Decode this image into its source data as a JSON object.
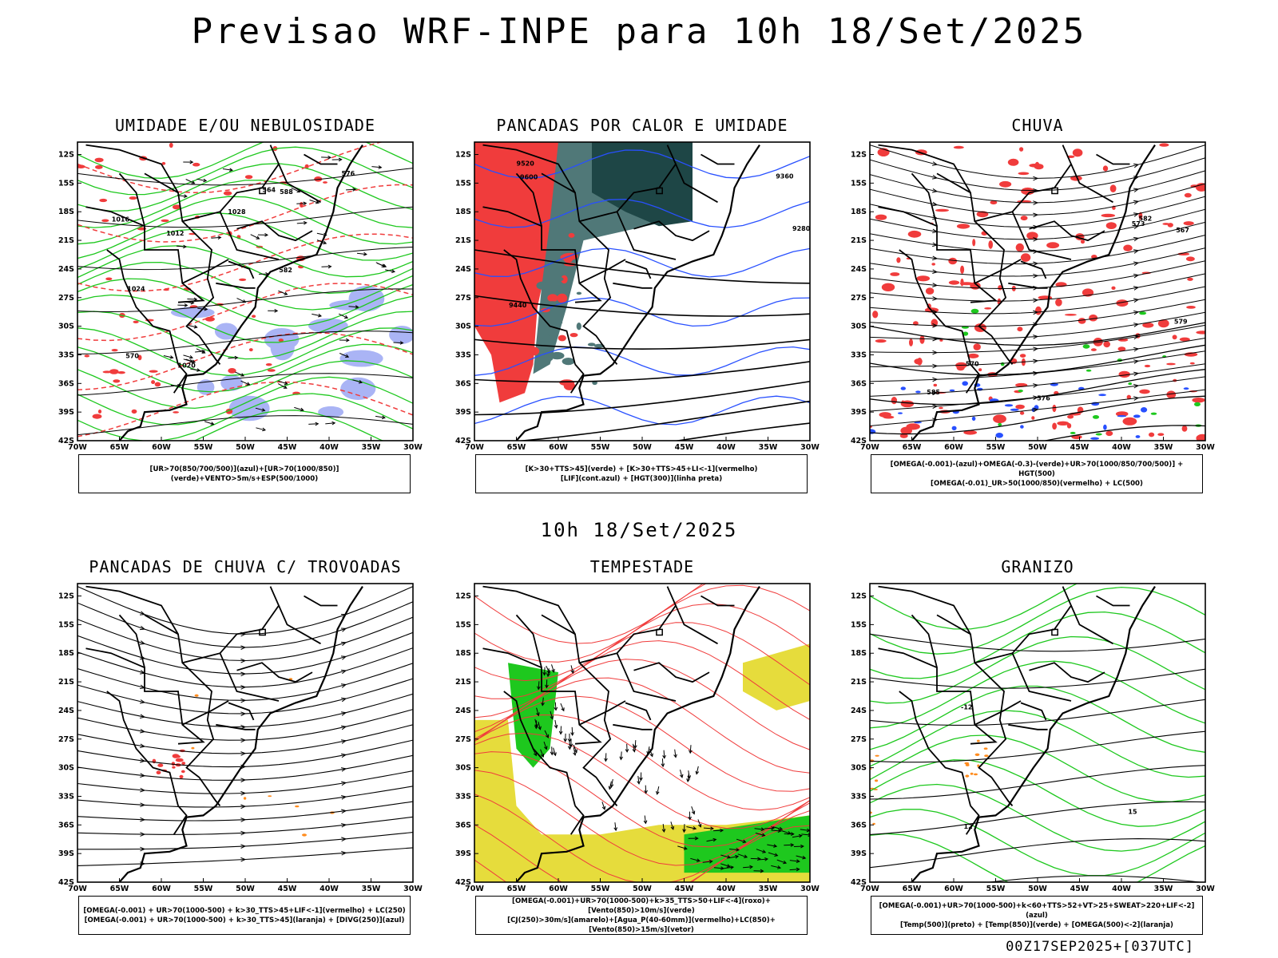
{
  "title": "Previsao WRF-INPE  para 10h 18/Set/2025",
  "subtitle": "10h 18/Set/2025",
  "footer": "00Z17SEP2025+[037UTC]",
  "colors": {
    "red": "#f03c3c",
    "green": "#1ec81e",
    "blue": "#2850ff",
    "lavender": "#aab4f5",
    "darkteal": "#1e4646",
    "teal": "#507878",
    "yellow": "#e6dc3c",
    "orange": "#ff8c1e"
  },
  "axes": {
    "lat_labels": [
      "12S",
      "15S",
      "18S",
      "21S",
      "24S",
      "27S",
      "30S",
      "33S",
      "36S",
      "39S",
      "42S"
    ],
    "lon_labels": [
      "70W",
      "65W",
      "60W",
      "55W",
      "50W",
      "45W",
      "40W",
      "35W",
      "30W"
    ]
  },
  "panels": [
    {
      "title": "UMIDADE E/OU NEBULOSIDADE",
      "legend": [
        "[UR>70(850/700/500)](azul)+[UR>70(1000/850)](verde)+VENTO>5m/s+ESP(500/1000)"
      ],
      "contour_labels": [
        "1016",
        "1020",
        "1024",
        "1028",
        "1012",
        "570",
        "576",
        "582",
        "588",
        "564"
      ]
    },
    {
      "title": "PANCADAS POR CALOR E UMIDADE",
      "legend": [
        "[K>30+TTS>45](verde) + [K>30+TTS>45+LI<-1](vermelho)",
        "[LIF](cont.azul) + [HGT(300)](linha preta)"
      ],
      "contour_labels": [
        "9600",
        "9520",
        "9440",
        "9360",
        "9280"
      ]
    },
    {
      "title": "CHUVA",
      "legend": [
        "[OMEGA(-0.001)-(azul)+OMEGA(-0.3)-(verde)+UR>70(1000/850/700/500)] + HGT(500)",
        "[OMEGA(-0.01)_UR>50(1000/850)(vermelho) + LC(500)"
      ],
      "contour_labels": [
        "585",
        "582",
        "579",
        "576",
        "573",
        "570",
        "567"
      ]
    },
    {
      "title": "PANCADAS DE CHUVA C/ TROVOADAS",
      "legend": [
        "[OMEGA(-0.001) + UR>70(1000-500) + k>30_TTS>45+LIF<-1](vermelho) + LC(250)",
        "[OMEGA(-0.001) + UR>70(1000-500) + k>30_TTS>45](laranja) + [DIVG(250)](azul)"
      ],
      "contour_labels": []
    },
    {
      "title": "TEMPESTADE",
      "legend": [
        "[OMEGA(-0.001)+UR>70(1000-500)+k>35_TTS>50+LIF<-4](roxo)+[Vento(850)>10m/s](verde)",
        "[CJ(250)>30m/s](amarelo)+[Agua_P(40-60mm)](vermelho)+LC(850)+[Vento(850)>15m/s](vetor)"
      ],
      "contour_labels": []
    },
    {
      "title": "GRANIZO",
      "legend": [
        "[OMEGA(-0.001)+UR>70(1000-500)+k<60+TTS>52+VT>25+SWEAT>220+LIF<-2](azul)",
        "[Temp(500)](preto) + [Temp(850)](verde) + [OMEGA(500)<-2](laranja)"
      ],
      "contour_labels": [
        "-12",
        "12",
        "15"
      ]
    }
  ]
}
